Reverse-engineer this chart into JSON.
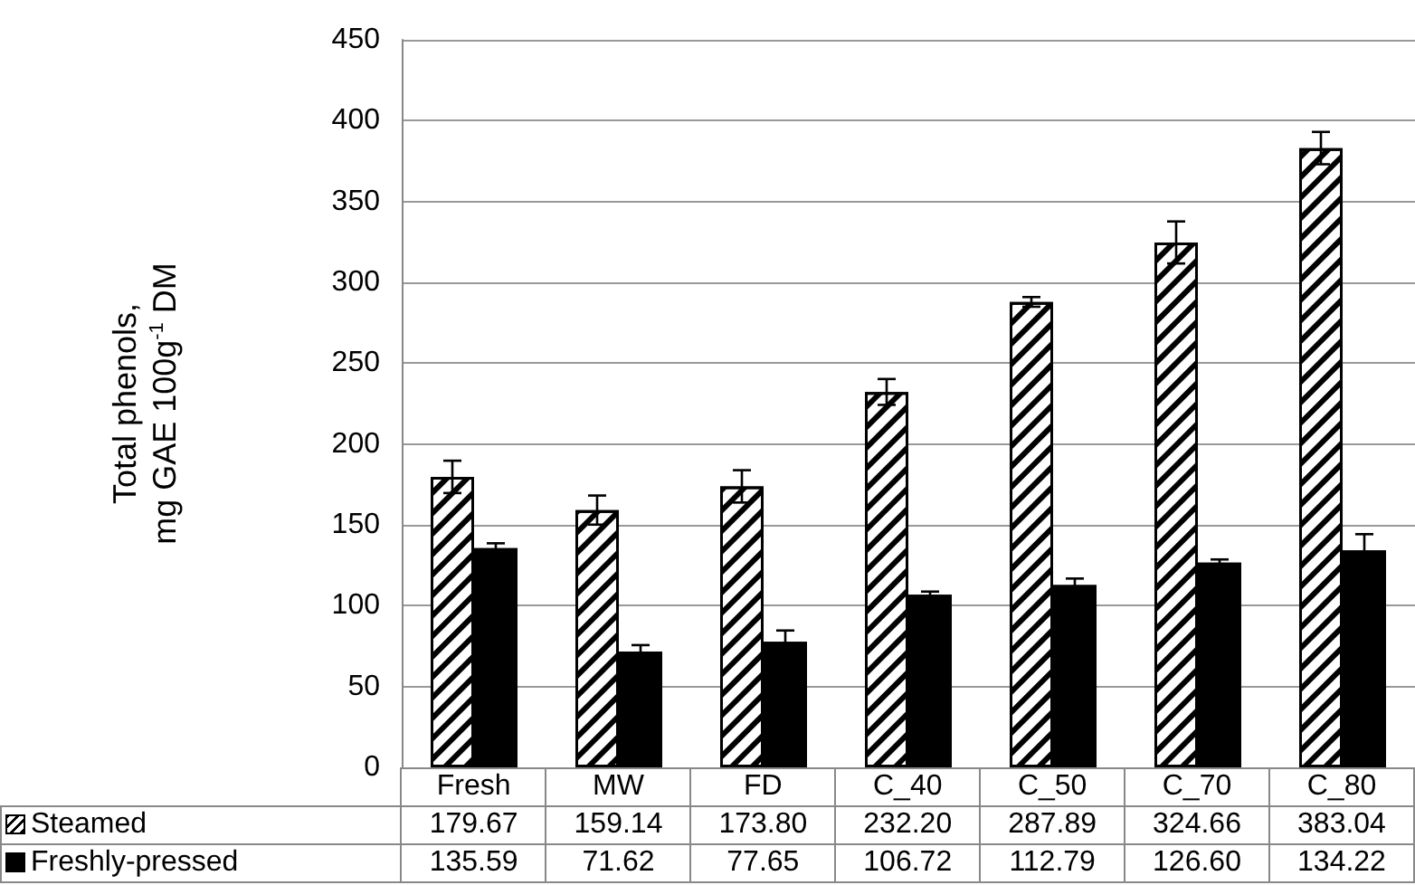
{
  "chart_data": {
    "type": "bar",
    "ylabel": "Total phenols,\nmg GAE 100g$^{-1}$ DM",
    "categories": [
      "Fresh",
      "MW",
      "FD",
      "C_40",
      "C_50",
      "C_70",
      "C_80"
    ],
    "series": [
      {
        "name": "Steamed",
        "color": "#ffffff",
        "values": [
          179.67,
          159.14,
          173.8,
          232.2,
          287.89,
          324.66,
          383.04
        ],
        "errors": [
          10,
          9,
          10,
          8,
          3,
          13,
          10
        ],
        "value_labels": [
          "179.67",
          "159.14",
          "173.80",
          "232.20",
          "287.89",
          "324.66",
          "383.04"
        ]
      },
      {
        "name": "Freshly-pressed",
        "color": "#000000",
        "values": [
          135.59,
          71.62,
          77.65,
          106.72,
          112.79,
          126.6,
          134.22
        ],
        "errors": [
          3,
          4,
          7,
          2,
          4,
          2,
          10
        ],
        "value_labels": [
          "135.59",
          "71.62",
          "77.65",
          "106.72",
          "112.79",
          "126.60",
          "134.22"
        ]
      }
    ],
    "ylim": [
      0,
      450
    ],
    "yticks": [
      0,
      50,
      100,
      150,
      200,
      250,
      300,
      350,
      400,
      450
    ],
    "grid": "y",
    "legend": "bottom left"
  }
}
